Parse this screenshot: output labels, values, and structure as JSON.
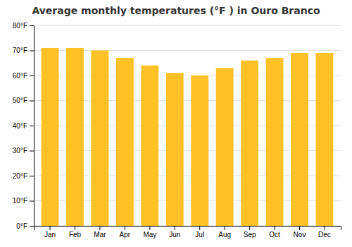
{
  "chart_data": {
    "type": "bar",
    "title": "Average monthly temperatures (°F ) in Ouro Branco",
    "categories": [
      "Jan",
      "Feb",
      "Mar",
      "Apr",
      "May",
      "Jun",
      "Jul",
      "Aug",
      "Sep",
      "Oct",
      "Nov",
      "Dec"
    ],
    "values": [
      71,
      71,
      70,
      67,
      64,
      61,
      60,
      63,
      66,
      67,
      69,
      69
    ],
    "color": "#FFC125",
    "ylim": [
      0,
      80
    ],
    "yticks": [
      {
        "value": 0,
        "label": "0°F"
      },
      {
        "value": 10,
        "label": "10°F"
      },
      {
        "value": 20,
        "label": "20°F"
      },
      {
        "value": 30,
        "label": "30°F"
      },
      {
        "value": 40,
        "label": "40°F"
      },
      {
        "value": 50,
        "label": "50°F"
      },
      {
        "value": 60,
        "label": "60°F"
      },
      {
        "value": 70,
        "label": "70°F"
      },
      {
        "value": 80,
        "label": "80°F"
      }
    ],
    "grid": true
  }
}
